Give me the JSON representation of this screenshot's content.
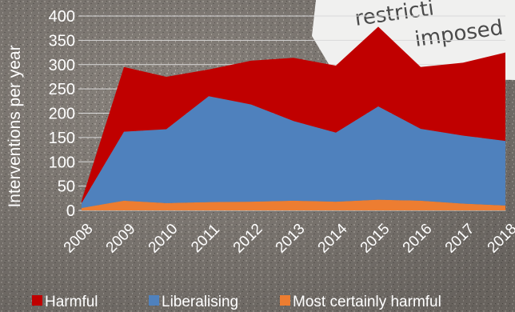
{
  "background": {
    "text_line1": "restricti",
    "text_line2": "imposed",
    "text_color": "#4a4a4a",
    "paper_color": "#f2f2f2",
    "texture_color": "#8c8680"
  },
  "chart_data": {
    "type": "area",
    "stacked": true,
    "x": [
      "2008",
      "2009",
      "2010",
      "2011",
      "2012",
      "2013",
      "2014",
      "2015",
      "2016",
      "2017",
      "2018"
    ],
    "series": [
      {
        "name": "Most certainly harmful",
        "color": "#ed7d31",
        "values": [
          5,
          20,
          15,
          17,
          18,
          20,
          18,
          22,
          20,
          14,
          10
        ]
      },
      {
        "name": "Liberalising",
        "color": "#4f81bd",
        "values": [
          10,
          142,
          152,
          218,
          200,
          164,
          142,
          192,
          148,
          140,
          133
        ]
      },
      {
        "name": "Harmful",
        "color": "#c00000",
        "values": [
          5,
          133,
          108,
          55,
          90,
          130,
          138,
          164,
          127,
          150,
          182
        ]
      }
    ],
    "legend_order": [
      "Harmful",
      "Liberalising",
      "Most certainly harmful"
    ],
    "ylabel": "Interventions per year",
    "xlabel": "",
    "ylim": [
      0,
      400
    ],
    "yticks": [
      "0",
      "50",
      "100",
      "150",
      "200",
      "250",
      "300",
      "350",
      "400"
    ],
    "grid": true,
    "legend_position": "bottom"
  }
}
